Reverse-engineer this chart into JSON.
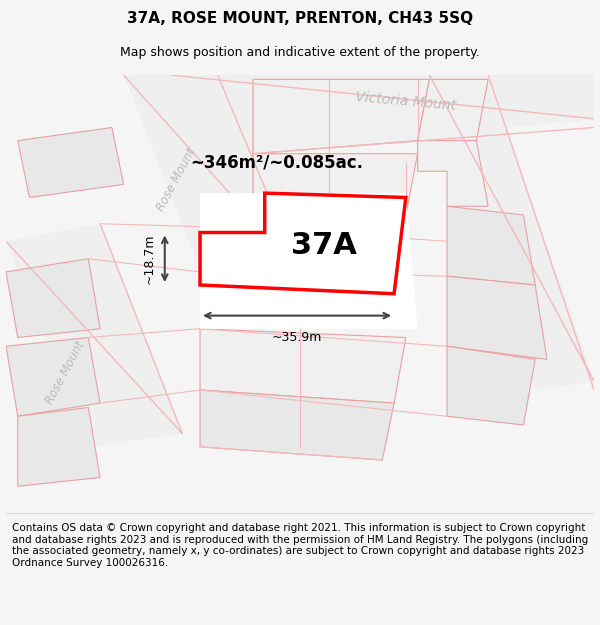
{
  "title": "37A, ROSE MOUNT, PRENTON, CH43 5SQ",
  "subtitle": "Map shows position and indicative extent of the property.",
  "footer": "Contains OS data © Crown copyright and database right 2021. This information is subject to Crown copyright and database rights 2023 and is reproduced with the permission of HM Land Registry. The polygons (including the associated geometry, namely x, y co-ordinates) are subject to Crown copyright and database rights 2023 Ordnance Survey 100026316.",
  "area_label": "~346m²/~0.085ac.",
  "property_label": "37A",
  "dim_width": "~35.9m",
  "dim_height": "~18.7m",
  "street_label_upper": "Rose Mount",
  "street_label_victoria": "Victoria Mount",
  "street_label_lower": "Rose Mount",
  "bg_color": "#f5f5f5",
  "map_bg": "#ffffff",
  "title_fontsize": 11,
  "subtitle_fontsize": 9,
  "footer_fontsize": 7.5,
  "road_color_light": "#f5b8b8",
  "highlight_color": "#ff0000",
  "street_text_color": "#bbbbbb",
  "dim_color": "#444444"
}
